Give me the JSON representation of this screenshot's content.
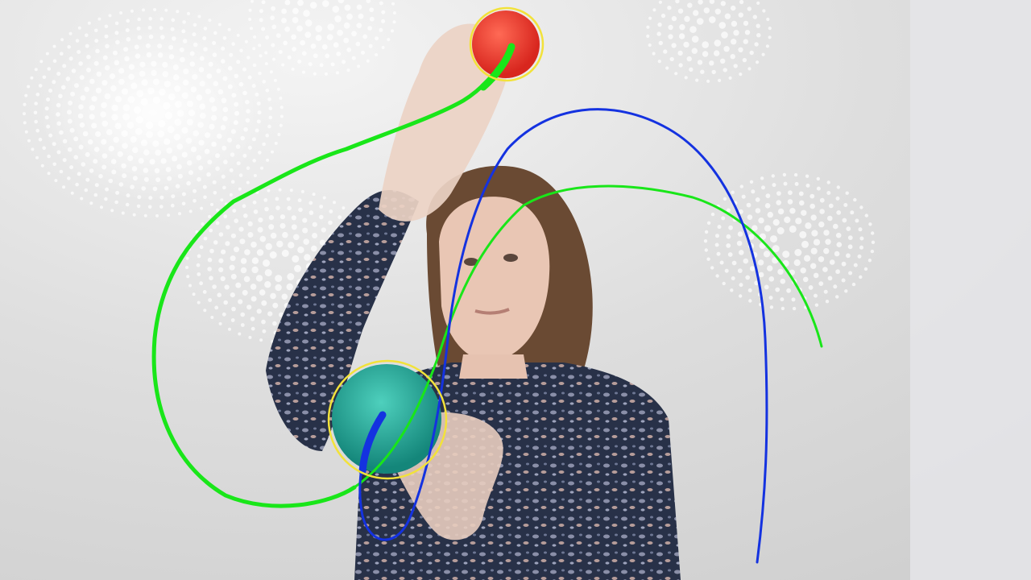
{
  "scene": {
    "description_label": "ball-tracking-frame",
    "tracked_balls": [
      {
        "name": "red-ball",
        "color": "#e8332a",
        "marker_color": "#f2e23a"
      },
      {
        "name": "teal-ball",
        "color": "#1fa38e",
        "marker_color": "#f2e23a"
      }
    ],
    "trails": [
      {
        "name": "green-trail-red-ball",
        "color": "#19e619"
      },
      {
        "name": "blue-trail-teal-ball",
        "color": "#1432e0"
      },
      {
        "name": "green-trail-secondary",
        "color": "#19e619"
      }
    ],
    "palette": {
      "wall": "#dcdcdc",
      "wall_light": "#f2f2f2",
      "dots": "#ffffff",
      "shirt": "#2c3550",
      "hair": "#6a4a33",
      "skin": "#e8c8b8"
    }
  }
}
